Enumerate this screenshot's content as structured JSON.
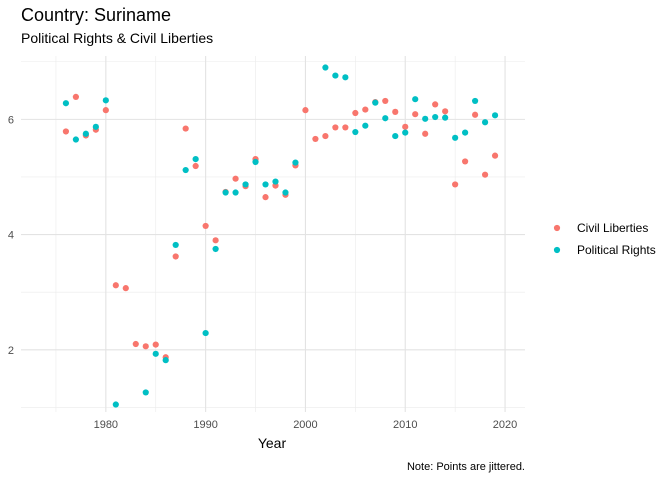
{
  "chart_data": {
    "type": "scatter",
    "title": "Country: Suriname",
    "subtitle": "Political Rights & Civil Liberties",
    "xlabel": "Year",
    "ylabel": "",
    "caption": "Note: Points are jittered.",
    "xlim": [
      1971.5,
      2022
    ],
    "ylim": [
      0.92,
      7.1
    ],
    "x_ticks": [
      1980,
      1990,
      2000,
      2010,
      2020
    ],
    "y_ticks": [
      2,
      4,
      6
    ],
    "grid": true,
    "legend_position": "right",
    "series": [
      {
        "name": "Civil Liberties",
        "color": "#F8766D",
        "points": [
          [
            1976,
            5.79
          ],
          [
            1977,
            6.39
          ],
          [
            1978,
            5.72
          ],
          [
            1979,
            5.82
          ],
          [
            1980,
            6.16
          ],
          [
            1981,
            3.12
          ],
          [
            1982,
            3.07
          ],
          [
            1983,
            2.1
          ],
          [
            1984,
            2.06
          ],
          [
            1985,
            2.09
          ],
          [
            1986,
            1.87
          ],
          [
            1987,
            3.62
          ],
          [
            1988,
            5.84
          ],
          [
            1989,
            5.19
          ],
          [
            1990,
            4.15
          ],
          [
            1991,
            3.9
          ],
          [
            1992,
            4.74
          ],
          [
            1993,
            4.97
          ],
          [
            1994,
            4.84
          ],
          [
            1995,
            5.31
          ],
          [
            1996,
            4.65
          ],
          [
            1997,
            4.85
          ],
          [
            1998,
            4.69
          ],
          [
            1999,
            5.2
          ],
          [
            2000,
            6.16
          ],
          [
            2001,
            5.66
          ],
          [
            2002,
            5.71
          ],
          [
            2003,
            5.86
          ],
          [
            2004,
            5.86
          ],
          [
            2005,
            6.11
          ],
          [
            2006,
            6.17
          ],
          [
            2007,
            6.3
          ],
          [
            2008,
            6.32
          ],
          [
            2009,
            6.13
          ],
          [
            2010,
            5.87
          ],
          [
            2011,
            6.09
          ],
          [
            2012,
            5.75
          ],
          [
            2013,
            6.26
          ],
          [
            2014,
            6.14
          ],
          [
            2015,
            4.87
          ],
          [
            2016,
            5.27
          ],
          [
            2017,
            6.08
          ],
          [
            2018,
            5.04
          ],
          [
            2019,
            5.37
          ]
        ]
      },
      {
        "name": "Political Rights",
        "color": "#00BFC4",
        "points": [
          [
            1976,
            6.28
          ],
          [
            1977,
            5.65
          ],
          [
            1978,
            5.75
          ],
          [
            1979,
            5.87
          ],
          [
            1980,
            6.33
          ],
          [
            1981,
            1.05
          ],
          [
            1984,
            1.26
          ],
          [
            1985,
            1.93
          ],
          [
            1986,
            1.82
          ],
          [
            1987,
            3.82
          ],
          [
            1988,
            5.12
          ],
          [
            1989,
            5.31
          ],
          [
            1990,
            2.29
          ],
          [
            1991,
            3.75
          ],
          [
            1992,
            4.73
          ],
          [
            1993,
            4.73
          ],
          [
            1994,
            4.87
          ],
          [
            1995,
            5.26
          ],
          [
            1996,
            4.87
          ],
          [
            1997,
            4.92
          ],
          [
            1998,
            4.73
          ],
          [
            1999,
            5.25
          ],
          [
            2002,
            6.9
          ],
          [
            2003,
            6.76
          ],
          [
            2004,
            6.73
          ],
          [
            2005,
            5.78
          ],
          [
            2006,
            5.89
          ],
          [
            2007,
            6.29
          ],
          [
            2008,
            6.02
          ],
          [
            2009,
            5.71
          ],
          [
            2010,
            5.77
          ],
          [
            2011,
            6.35
          ],
          [
            2012,
            6.01
          ],
          [
            2013,
            6.04
          ],
          [
            2014,
            6.03
          ],
          [
            2015,
            5.68
          ],
          [
            2016,
            5.77
          ],
          [
            2017,
            6.32
          ],
          [
            2018,
            5.95
          ],
          [
            2019,
            6.07
          ]
        ]
      }
    ]
  }
}
